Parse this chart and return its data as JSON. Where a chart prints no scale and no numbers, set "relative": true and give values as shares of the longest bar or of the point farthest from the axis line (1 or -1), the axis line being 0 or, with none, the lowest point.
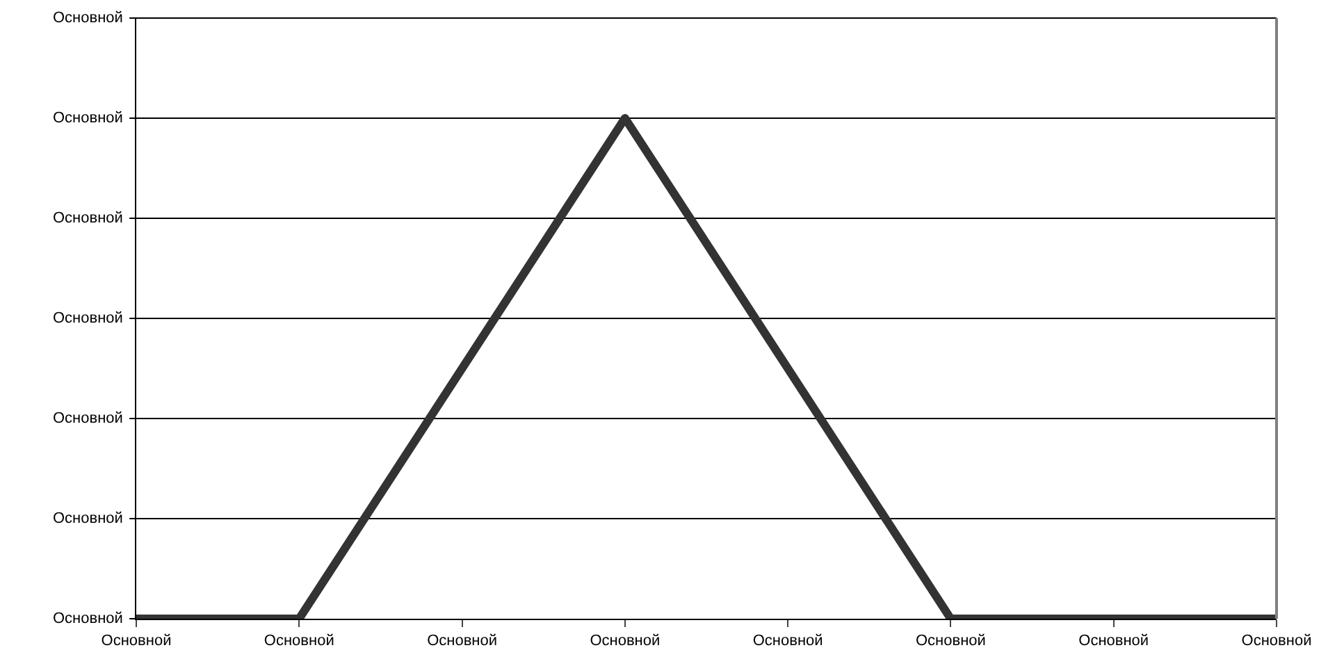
{
  "chart_data": {
    "type": "line",
    "relative": true,
    "categories": [
      "Основной",
      "Основной",
      "Основной",
      "Основной",
      "Основной",
      "Основной",
      "Основной",
      "Основной"
    ],
    "series": [
      {
        "color": "#333333",
        "values": [
          0,
          0,
          0.5,
          1,
          0.5,
          0,
          0,
          0
        ]
      }
    ],
    "annotations": [
      "Основной",
      "Основной",
      "Основной",
      "Основной",
      "Основной",
      "Основной",
      "Основной"
    ],
    "grid": "y",
    "marker": "none",
    "line_style": "solid"
  }
}
